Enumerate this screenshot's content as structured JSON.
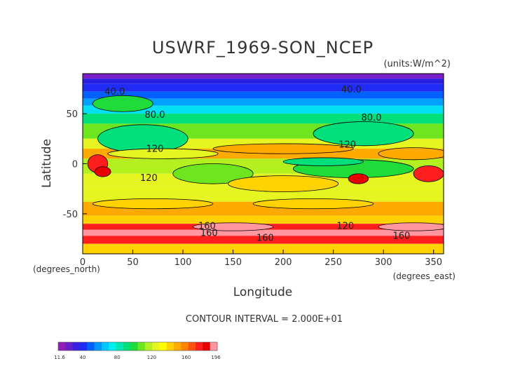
{
  "chart_data": {
    "type": "heatmap",
    "title": "USWRF_1969-SON_NCEP",
    "units": "(units:W/m^2)",
    "xlabel": "Longitude",
    "ylabel": "Latitude",
    "x_unit": "(degrees_east)",
    "y_unit": "(degrees_north)",
    "x_ticks": [
      0,
      50,
      100,
      150,
      200,
      250,
      300,
      350
    ],
    "y_ticks": [
      50,
      0,
      -50
    ],
    "xlim": [
      0,
      360
    ],
    "ylim": [
      -90,
      90
    ],
    "contour_interval": "CONTOUR INTERVAL = 2.000E+01",
    "contour_labels": [
      {
        "text": "40.0",
        "lon": 32,
        "lat": 69
      },
      {
        "text": "40.0",
        "lon": 268,
        "lat": 71
      },
      {
        "text": "80.0",
        "lon": 72,
        "lat": 46
      },
      {
        "text": "80.0",
        "lon": 288,
        "lat": 43
      },
      {
        "text": "120",
        "lon": 72,
        "lat": 12
      },
      {
        "text": "120",
        "lon": 264,
        "lat": 16
      },
      {
        "text": "120",
        "lon": 66,
        "lat": -17
      },
      {
        "text": "120",
        "lon": 262,
        "lat": -65
      },
      {
        "text": "160",
        "lon": 124,
        "lat": -65
      },
      {
        "text": "160",
        "lon": 126,
        "lat": -72
      },
      {
        "text": "160",
        "lon": 182,
        "lat": -77
      },
      {
        "text": "160",
        "lon": 318,
        "lat": -75
      }
    ],
    "colorbar": {
      "min_label": "11.6",
      "max_label": "196",
      "tick_labels": [
        "40",
        "80",
        "120",
        "160"
      ],
      "range": [
        11.6,
        196
      ],
      "colors": [
        "#8f1fb8",
        "#6a1fcc",
        "#3a1fe0",
        "#1f2cf5",
        "#0060ff",
        "#0096ff",
        "#00c8ff",
        "#00f0f0",
        "#00e6b4",
        "#00e07a",
        "#1fdc3a",
        "#6ee61f",
        "#b4f01f",
        "#e6f51f",
        "#ffff00",
        "#ffd200",
        "#ffaa00",
        "#ff8200",
        "#ff5014",
        "#ff1e1e",
        "#e60000",
        "#ff96a0"
      ]
    },
    "grid": false,
    "legend": "bottom-left colorbar"
  }
}
